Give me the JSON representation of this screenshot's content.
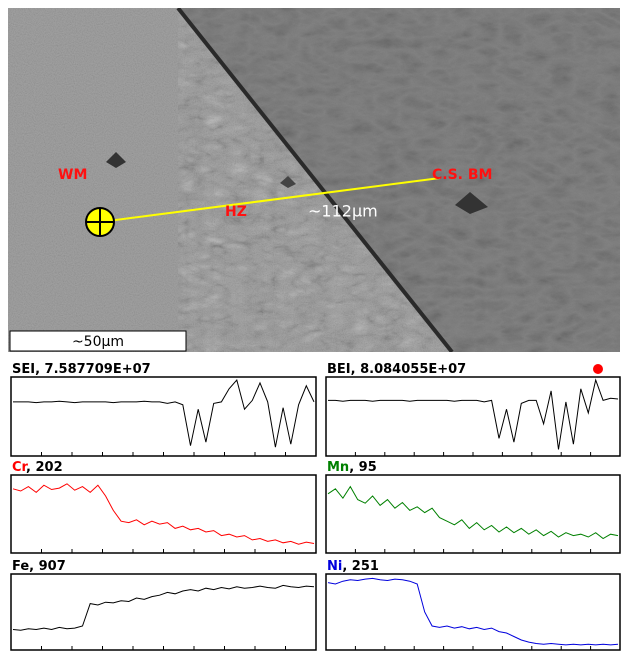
{
  "image": {
    "labels": {
      "wm": "WM",
      "hz": "HZ",
      "bm": "C.S. BM",
      "distance": "~112µm"
    },
    "scale_bar": "~50µm"
  },
  "panels": [
    {
      "title_parts": [
        "SEI",
        ", 7.587709E+07"
      ],
      "color": "#000000",
      "title_color": "#000000",
      "profile": [
        70,
        70,
        70,
        69,
        70,
        70,
        71,
        70,
        69,
        70,
        70,
        70,
        70,
        69,
        70,
        70,
        70,
        71,
        70,
        70,
        68,
        70,
        66,
        10,
        60,
        15,
        68,
        70,
        88,
        100,
        60,
        72,
        96,
        70,
        8,
        62,
        12,
        66,
        92,
        70
      ]
    },
    {
      "title_parts": [
        "BEI",
        ", 8.084055E+07"
      ],
      "color": "#000000",
      "title_color": "#000000",
      "profile": [
        72,
        72,
        71,
        72,
        72,
        72,
        71,
        72,
        72,
        72,
        72,
        71,
        72,
        72,
        72,
        72,
        72,
        71,
        72,
        72,
        72,
        70,
        72,
        20,
        60,
        15,
        68,
        72,
        72,
        40,
        85,
        5,
        70,
        12,
        88,
        55,
        100,
        72,
        75,
        74
      ]
    },
    {
      "title_parts": [
        "Cr",
        ", 202"
      ],
      "color": "#ff0000",
      "title_color": "#ff0000",
      "profile": [
        85,
        82,
        88,
        80,
        90,
        84,
        86,
        92,
        83,
        88,
        80,
        90,
        75,
        55,
        40,
        38,
        42,
        35,
        40,
        36,
        38,
        30,
        33,
        28,
        30,
        25,
        27,
        20,
        22,
        18,
        20,
        14,
        16,
        12,
        14,
        10,
        12,
        8,
        11,
        9
      ]
    },
    {
      "title_parts": [
        "Mn",
        ", 95"
      ],
      "color": "#008000",
      "title_color": "#008000",
      "profile": [
        78,
        85,
        72,
        88,
        70,
        65,
        75,
        62,
        70,
        58,
        66,
        55,
        60,
        52,
        58,
        45,
        40,
        35,
        42,
        30,
        38,
        28,
        34,
        25,
        32,
        24,
        30,
        22,
        28,
        20,
        26,
        18,
        24,
        20,
        22,
        18,
        24,
        16,
        22,
        20
      ]
    },
    {
      "title_parts": [
        "Fe",
        ", 907"
      ],
      "color": "#000000",
      "title_color": "#000000",
      "profile": [
        25,
        24,
        26,
        25,
        27,
        25,
        28,
        26,
        27,
        30,
        62,
        60,
        64,
        63,
        66,
        65,
        70,
        68,
        72,
        74,
        78,
        76,
        80,
        82,
        80,
        84,
        82,
        85,
        83,
        86,
        84,
        85,
        87,
        85,
        84,
        88,
        86,
        85,
        87,
        86
      ]
    },
    {
      "title_parts": [
        "Ni",
        ", 251"
      ],
      "color": "#0000dd",
      "title_color": "#0000dd",
      "profile": [
        92,
        90,
        94,
        96,
        95,
        97,
        98,
        96,
        95,
        97,
        96,
        94,
        90,
        50,
        30,
        28,
        30,
        27,
        29,
        26,
        28,
        25,
        27,
        22,
        20,
        15,
        10,
        7,
        5,
        4,
        5,
        4,
        3,
        4,
        3,
        4,
        3,
        4,
        3,
        4
      ]
    }
  ]
}
